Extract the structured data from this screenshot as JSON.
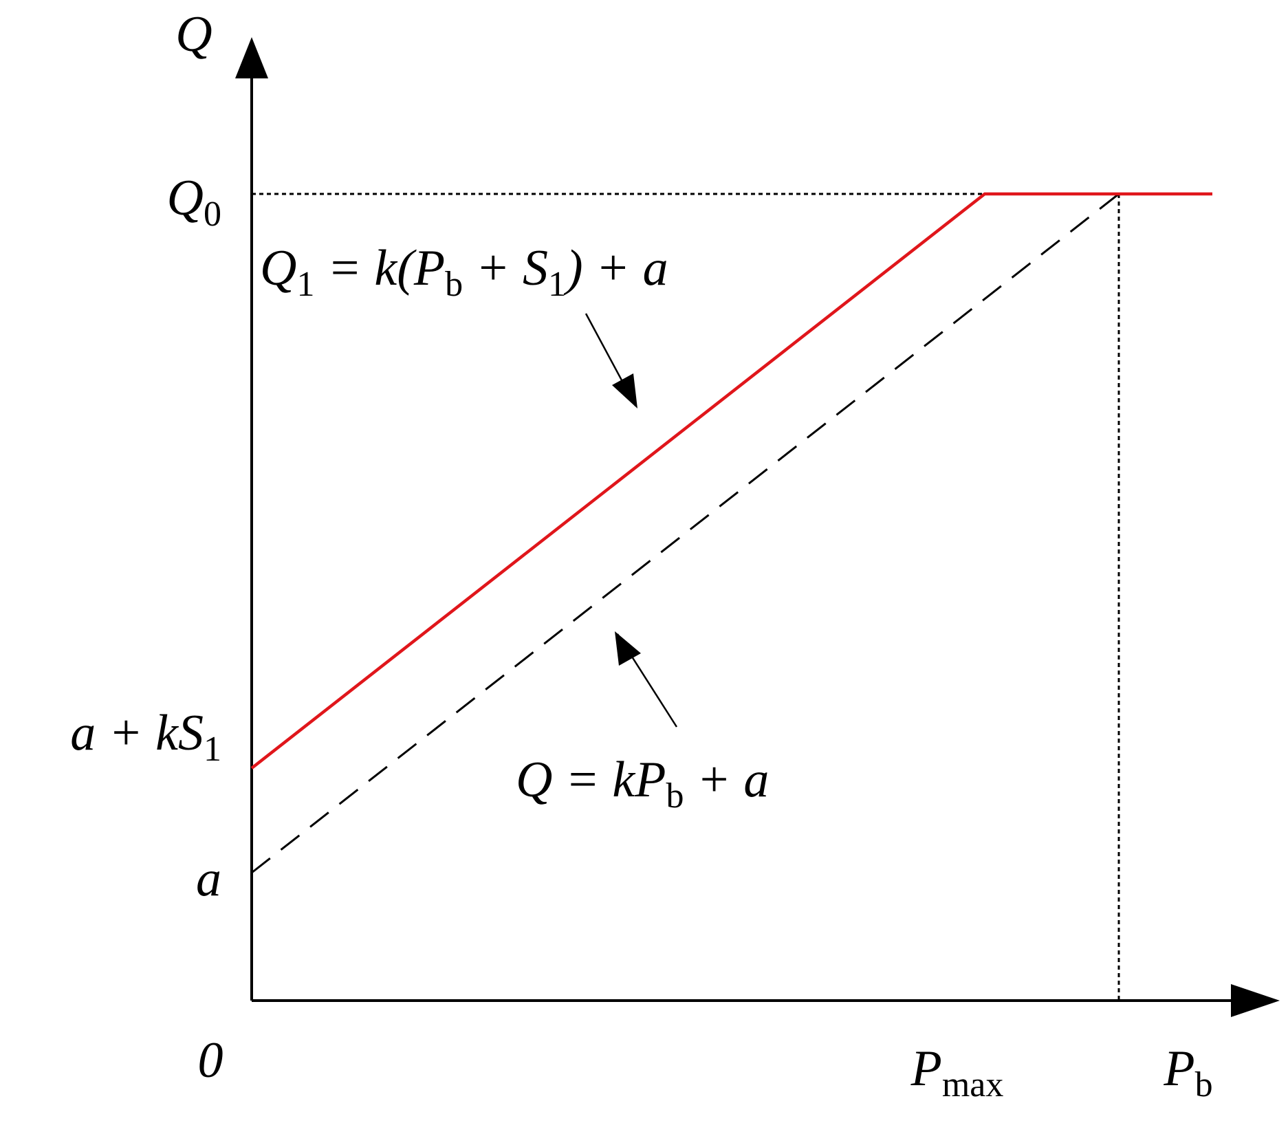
{
  "axes": {
    "y_label": [
      "Q"
    ],
    "x_label": [
      "P",
      {
        "sub": "b"
      }
    ],
    "origin": [
      "0"
    ]
  },
  "levels": {
    "q0": [
      "Q",
      {
        "sub": "0"
      }
    ],
    "a_plus_ks1": [
      "a + kS",
      {
        "sub": "1"
      }
    ],
    "a": [
      "a"
    ],
    "p_max": [
      "P",
      {
        "sub": "max"
      }
    ]
  },
  "equations": [
    [
      "Q",
      {
        "sub": "1"
      },
      " = k(P",
      {
        "sub": "b"
      },
      " + S",
      {
        "sub": "1"
      },
      ") + a"
    ],
    [
      "Q = kP",
      {
        "sub": "b"
      },
      " + a"
    ]
  ]
}
